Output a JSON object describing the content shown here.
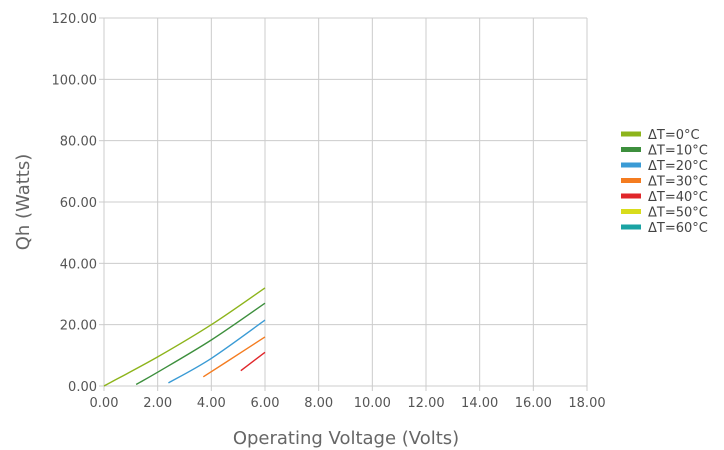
{
  "chart_data": {
    "type": "line",
    "xlabel": "Operating Voltage (Volts)",
    "ylabel": "Qh (Watts)",
    "xlim": [
      0,
      18
    ],
    "ylim": [
      0,
      120
    ],
    "x_ticks": [
      "0.00",
      "2.00",
      "4.00",
      "6.00",
      "8.00",
      "10.00",
      "12.00",
      "14.00",
      "16.00",
      "18.00"
    ],
    "y_ticks": [
      "0.00",
      "20.00",
      "40.00",
      "60.00",
      "80.00",
      "100.00",
      "120.00"
    ],
    "grid": true,
    "legend_position": "right",
    "series": [
      {
        "name": "ΔT=0°C",
        "color": "#8db41b",
        "x": [
          0.0,
          2.0,
          4.0,
          6.0
        ],
        "y": [
          0.0,
          9.5,
          20.0,
          32.0
        ]
      },
      {
        "name": "ΔT=10°C",
        "color": "#3d8f3d",
        "x": [
          1.2,
          2.0,
          4.0,
          6.0
        ],
        "y": [
          0.5,
          4.5,
          15.0,
          27.0
        ]
      },
      {
        "name": "ΔT=20°C",
        "color": "#3a9bd5",
        "x": [
          2.4,
          4.0,
          6.0
        ],
        "y": [
          1.0,
          9.0,
          21.5
        ]
      },
      {
        "name": "ΔT=30°C",
        "color": "#f47c20",
        "x": [
          3.7,
          4.5,
          6.0
        ],
        "y": [
          3.0,
          7.5,
          16.0
        ]
      },
      {
        "name": "ΔT=40°C",
        "color": "#e0262a",
        "x": [
          5.1,
          6.0
        ],
        "y": [
          5.0,
          11.0
        ]
      },
      {
        "name": "ΔT=50°C",
        "color": "#d8dc1c",
        "x": [],
        "y": []
      },
      {
        "name": "ΔT=60°C",
        "color": "#1aa3a3",
        "x": [],
        "y": []
      }
    ]
  }
}
